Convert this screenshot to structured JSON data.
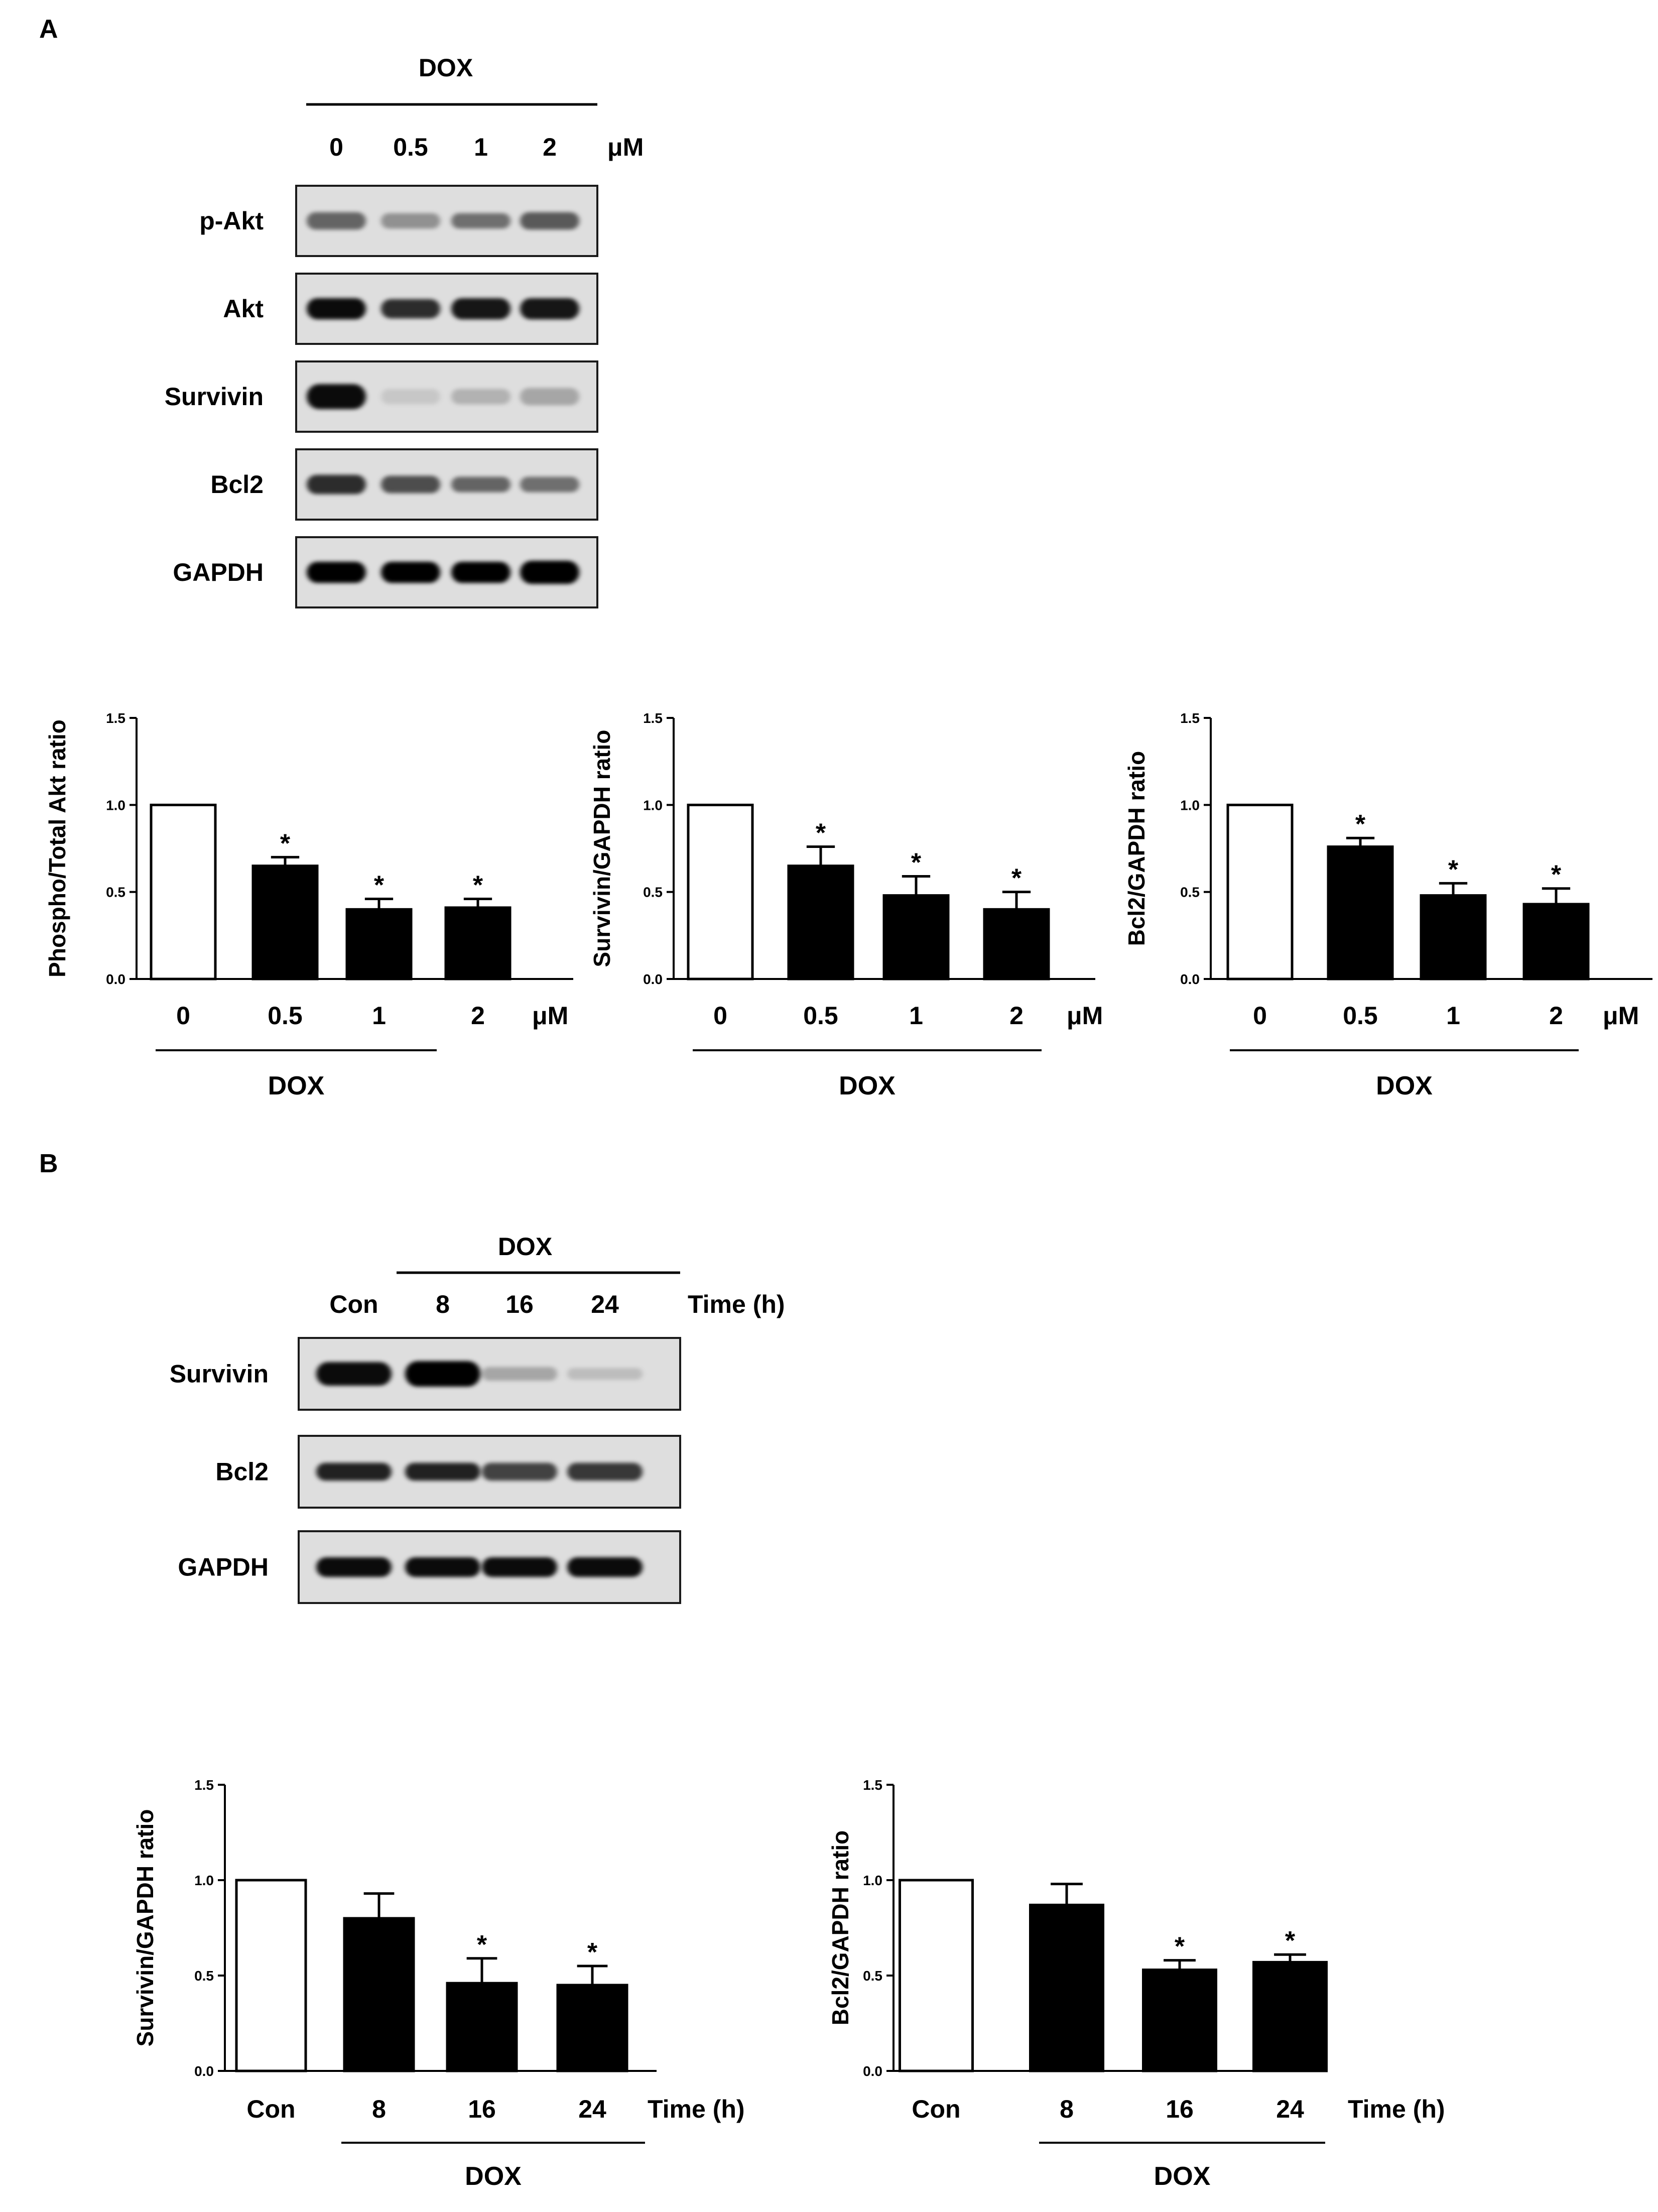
{
  "panels": {
    "A": {
      "label": "A"
    },
    "B": {
      "label": "B"
    }
  },
  "blot_A": {
    "treatment_label": "DOX",
    "lanes": [
      "0",
      "0.5",
      "1",
      "2"
    ],
    "unit": "μM",
    "rows": [
      {
        "label": "p-Akt",
        "intensity": [
          0.55,
          0.35,
          0.5,
          0.6
        ],
        "thickness": [
          0.45,
          0.4,
          0.4,
          0.45
        ]
      },
      {
        "label": "Akt",
        "intensity": [
          0.95,
          0.8,
          0.9,
          0.9
        ],
        "thickness": [
          0.55,
          0.5,
          0.55,
          0.55
        ]
      },
      {
        "label": "Survivin",
        "intensity": [
          0.95,
          0.1,
          0.2,
          0.25
        ],
        "thickness": [
          0.65,
          0.4,
          0.4,
          0.45
        ]
      },
      {
        "label": "Bcl2",
        "intensity": [
          0.8,
          0.65,
          0.55,
          0.5
        ],
        "thickness": [
          0.5,
          0.45,
          0.4,
          0.4
        ]
      },
      {
        "label": "GAPDH",
        "intensity": [
          1.0,
          1.0,
          1.0,
          1.0
        ],
        "thickness": [
          0.55,
          0.55,
          0.55,
          0.6
        ]
      }
    ]
  },
  "blot_B": {
    "treatment_label": "DOX",
    "lanes": [
      "Con",
      "8",
      "16",
      "24"
    ],
    "unit": "Time (h)",
    "rows": [
      {
        "label": "Survivin",
        "intensity": [
          0.95,
          1.0,
          0.25,
          0.15
        ],
        "thickness": [
          0.6,
          0.65,
          0.35,
          0.3
        ]
      },
      {
        "label": "Bcl2",
        "intensity": [
          0.85,
          0.85,
          0.7,
          0.75
        ],
        "thickness": [
          0.45,
          0.45,
          0.45,
          0.45
        ]
      },
      {
        "label": "GAPDH",
        "intensity": [
          0.95,
          0.95,
          0.95,
          0.95
        ],
        "thickness": [
          0.5,
          0.5,
          0.5,
          0.5
        ]
      }
    ]
  },
  "chart_data": [
    {
      "type": "bar",
      "ylabel": "Phospho/Total Akt ratio",
      "categories": [
        "0",
        "0.5",
        "1",
        "2"
      ],
      "unit": "μM",
      "group_label": "DOX",
      "values": [
        1.0,
        0.65,
        0.4,
        0.41
      ],
      "errors": [
        0,
        0.05,
        0.06,
        0.05
      ],
      "significance": [
        "",
        "*",
        "*",
        "*"
      ],
      "fills": [
        "#ffffff",
        "#000000",
        "#000000",
        "#000000"
      ],
      "ylim": [
        0,
        1.5
      ],
      "yticks": [
        "0.0",
        "0.5",
        "1.0",
        "1.5"
      ]
    },
    {
      "type": "bar",
      "ylabel": "Survivin/GAPDH ratio",
      "categories": [
        "0",
        "0.5",
        "1",
        "2"
      ],
      "unit": "μM",
      "group_label": "DOX",
      "values": [
        1.0,
        0.65,
        0.48,
        0.4
      ],
      "errors": [
        0,
        0.11,
        0.11,
        0.1
      ],
      "significance": [
        "",
        "*",
        "*",
        "*"
      ],
      "fills": [
        "#ffffff",
        "#000000",
        "#000000",
        "#000000"
      ],
      "ylim": [
        0,
        1.5
      ],
      "yticks": [
        "0.0",
        "0.5",
        "1.0",
        "1.5"
      ]
    },
    {
      "type": "bar",
      "ylabel": "Bcl2/GAPDH ratio",
      "categories": [
        "0",
        "0.5",
        "1",
        "2"
      ],
      "unit": "μM",
      "group_label": "DOX",
      "values": [
        1.0,
        0.76,
        0.48,
        0.43
      ],
      "errors": [
        0,
        0.05,
        0.07,
        0.09
      ],
      "significance": [
        "",
        "*",
        "*",
        "*"
      ],
      "fills": [
        "#ffffff",
        "#000000",
        "#000000",
        "#000000"
      ],
      "ylim": [
        0,
        1.5
      ],
      "yticks": [
        "0.0",
        "0.5",
        "1.0",
        "1.5"
      ]
    },
    {
      "type": "bar",
      "ylabel": "Survivin/GAPDH ratio",
      "categories": [
        "Con",
        "8",
        "16",
        "24"
      ],
      "unit": "Time (h)",
      "group_label": "DOX",
      "values": [
        1.0,
        0.8,
        0.46,
        0.45
      ],
      "errors": [
        0,
        0.13,
        0.13,
        0.1
      ],
      "significance": [
        "",
        "",
        "*",
        "*"
      ],
      "fills": [
        "#ffffff",
        "#000000",
        "#000000",
        "#000000"
      ],
      "ylim": [
        0,
        1.5
      ],
      "yticks": [
        "0.0",
        "0.5",
        "1.0",
        "1.5"
      ]
    },
    {
      "type": "bar",
      "ylabel": "Bcl2/GAPDH ratio",
      "categories": [
        "Con",
        "8",
        "16",
        "24"
      ],
      "unit": "Time (h)",
      "group_label": "DOX",
      "values": [
        1.0,
        0.87,
        0.53,
        0.57
      ],
      "errors": [
        0,
        0.11,
        0.05,
        0.04
      ],
      "significance": [
        "",
        "",
        "*",
        "*"
      ],
      "fills": [
        "#ffffff",
        "#000000",
        "#000000",
        "#000000"
      ],
      "ylim": [
        0,
        1.5
      ],
      "yticks": [
        "0.0",
        "0.5",
        "1.0",
        "1.5"
      ]
    }
  ]
}
